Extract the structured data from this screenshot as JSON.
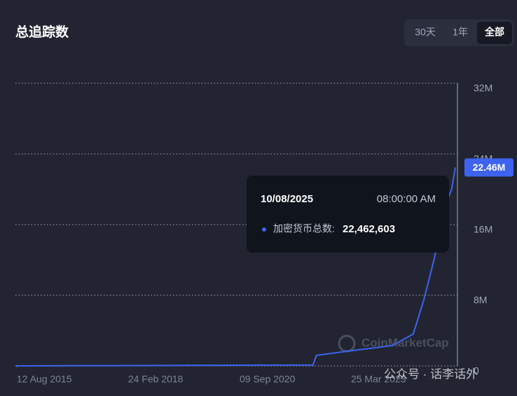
{
  "chart_data": {
    "type": "line",
    "title": "总追踪数",
    "range_buttons": [
      "30天",
      "1年",
      "全部"
    ],
    "selected_range": 2,
    "x": [
      "2015-08-01",
      "2022-05-13",
      "2022-06-11",
      "2023-03-18",
      "2024-03-02",
      "2024-08-24",
      "2024-11-19",
      "2025-02-15",
      "2025-05-13",
      "2025-07-10",
      "2025-08-10"
    ],
    "values": [
      0,
      100000,
      1200000,
      1700000,
      2300000,
      3600000,
      7400000,
      12100000,
      18000000,
      20000000,
      22462603
    ],
    "value_labels": [
      null,
      null,
      null,
      null,
      null,
      null,
      null,
      null,
      null,
      null,
      "22.46M"
    ],
    "color": "#3d63f0",
    "xlim": [
      "2015-08-01",
      "2025-08-10"
    ],
    "xticks": [
      {
        "value": "2015-08-12",
        "label": "12 Aug 2015"
      },
      {
        "value": "2018-02-24",
        "label": "24 Feb 2018"
      },
      {
        "value": "2020-09-09",
        "label": "09 Sep 2020"
      },
      {
        "value": "2023-03-25",
        "label": "25 Mar 2023"
      }
    ],
    "ylim": [
      0,
      32000000
    ],
    "yticks": [
      0,
      {
        "value": 8000000,
        "label": "8M"
      },
      {
        "value": 16000000,
        "label": "16M"
      },
      {
        "value": 24000000,
        "label": "24M"
      },
      {
        "value": 32000000,
        "label": "32M"
      }
    ],
    "grid": true,
    "tooltip": {
      "date": "10/08/2025",
      "time": "08:00:00 AM",
      "label": "加密货币总数:",
      "value": "22,462,603"
    },
    "watermarks": [
      "CoinMarketCap",
      "公众号 · 话李话外"
    ]
  }
}
